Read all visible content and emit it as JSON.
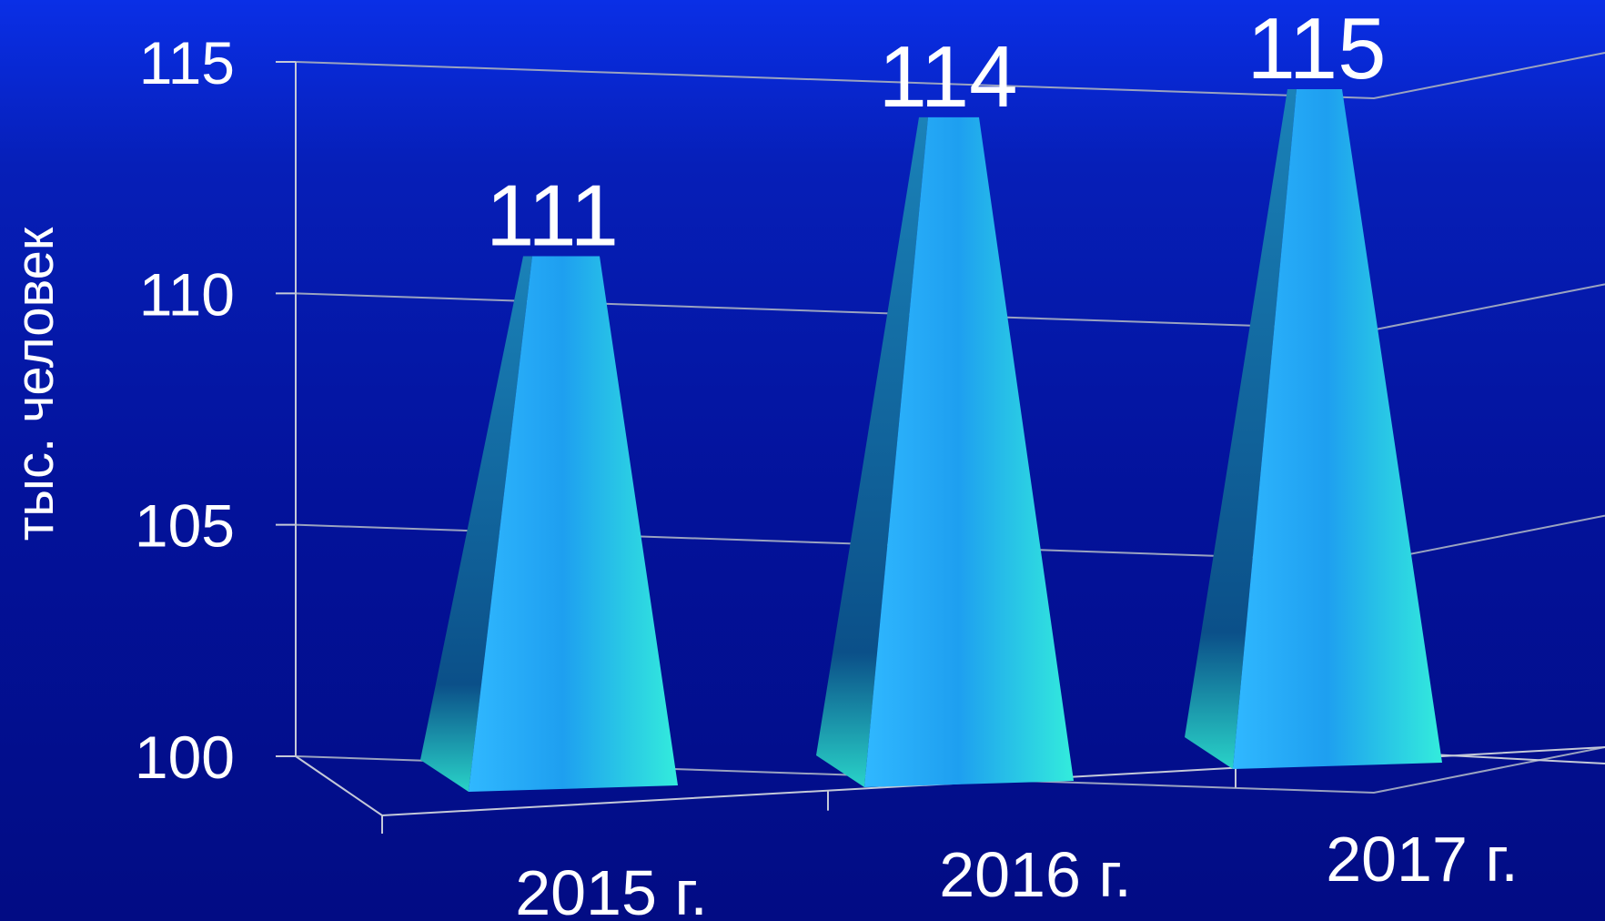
{
  "chart_data": {
    "type": "bar",
    "bar_shape": "3d-pyramid",
    "categories": [
      "2015 г.",
      "2016 г.",
      "2017 г."
    ],
    "values": [
      111,
      114,
      115
    ],
    "data_labels": [
      "111",
      "114",
      "115"
    ],
    "title": "",
    "xlabel": "",
    "ylabel": "тыс. человек",
    "ylim": [
      100,
      115
    ],
    "yticks": [
      "100",
      "105",
      "110",
      "115"
    ],
    "grid": true,
    "legend": "none",
    "colors": {
      "bar_light": "#2ee6e0",
      "bar_mid": "#1f9fe8",
      "bar_dark": "#0c5e93",
      "gridline": "#9aa3c0",
      "text": "#ffffff"
    }
  }
}
